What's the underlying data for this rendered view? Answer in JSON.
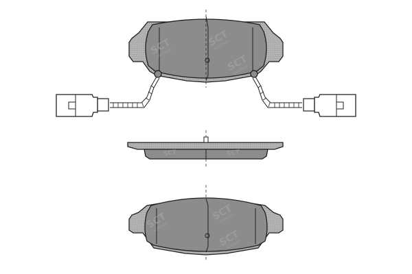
{
  "colors": {
    "pad_fill": "#8c8c8c",
    "plate_fill": "#b3b3b3",
    "outline": "#1f1f1f",
    "background": "#ffffff",
    "watermark": "#a9a9a9"
  },
  "watermark": {
    "brand": "SCT",
    "tagline": "GERMANY"
  },
  "views": [
    {
      "name": "front-view",
      "has_sensor_wires": true
    },
    {
      "name": "side-view",
      "has_sensor_wires": false
    },
    {
      "name": "rear-view",
      "has_sensor_wires": false
    }
  ]
}
